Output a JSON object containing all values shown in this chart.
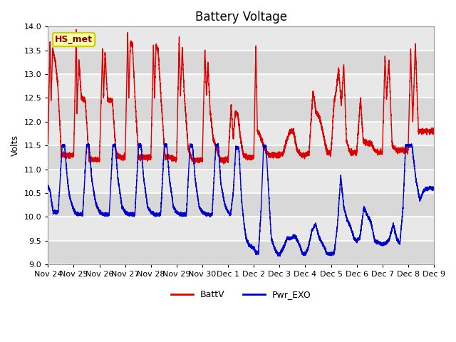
{
  "title": "Battery Voltage",
  "ylabel": "Volts",
  "ylim": [
    9.0,
    14.0
  ],
  "yticks": [
    9.0,
    9.5,
    10.0,
    10.5,
    11.0,
    11.5,
    12.0,
    12.5,
    13.0,
    13.5,
    14.0
  ],
  "x_tick_labels": [
    "Nov 24",
    "Nov 25",
    "Nov 26",
    "Nov 27",
    "Nov 28",
    "Nov 29",
    "Nov 30",
    "Dec 1",
    "Dec 2",
    "Dec 3",
    "Dec 4",
    "Dec 5",
    "Dec 6",
    "Dec 7",
    "Dec 8",
    "Dec 9"
  ],
  "batt_color": "#dd0000",
  "exo_color": "#0000cc",
  "plot_bg_inner": "#e8e8e8",
  "plot_bg_outer": "#d8d8d8",
  "annotation_text": "HS_met",
  "annotation_bg": "#ffffaa",
  "annotation_border": "#cccc00",
  "legend_batt": "BattV",
  "legend_exo": "Pwr_EXO",
  "title_fontsize": 12,
  "figsize": [
    6.4,
    4.8
  ],
  "dpi": 100,
  "batt_patterns": [
    [
      [
        0.0,
        11.5
      ],
      [
        0.08,
        13.7
      ],
      [
        0.12,
        12.45
      ],
      [
        0.18,
        13.5
      ],
      [
        0.28,
        13.3
      ],
      [
        0.38,
        12.8
      ],
      [
        0.52,
        11.3
      ],
      [
        0.7,
        11.3
      ],
      [
        1.0,
        11.3
      ]
    ],
    [
      [
        0.0,
        11.3
      ],
      [
        0.1,
        13.95
      ],
      [
        0.13,
        12.2
      ],
      [
        0.2,
        13.3
      ],
      [
        0.3,
        12.5
      ],
      [
        0.45,
        12.45
      ],
      [
        0.6,
        11.2
      ],
      [
        0.8,
        11.2
      ],
      [
        1.0,
        11.2
      ]
    ],
    [
      [
        0.0,
        11.2
      ],
      [
        0.12,
        13.5
      ],
      [
        0.16,
        12.5
      ],
      [
        0.22,
        13.45
      ],
      [
        0.32,
        12.45
      ],
      [
        0.5,
        12.45
      ],
      [
        0.65,
        11.3
      ],
      [
        0.85,
        11.25
      ],
      [
        1.0,
        11.25
      ]
    ],
    [
      [
        0.0,
        11.25
      ],
      [
        0.1,
        13.9
      ],
      [
        0.14,
        12.5
      ],
      [
        0.2,
        13.65
      ],
      [
        0.28,
        13.65
      ],
      [
        0.38,
        12.55
      ],
      [
        0.52,
        11.25
      ],
      [
        0.7,
        11.25
      ],
      [
        1.0,
        11.25
      ]
    ],
    [
      [
        0.0,
        11.25
      ],
      [
        0.1,
        13.65
      ],
      [
        0.14,
        12.5
      ],
      [
        0.2,
        13.6
      ],
      [
        0.28,
        13.5
      ],
      [
        0.4,
        12.45
      ],
      [
        0.55,
        11.25
      ],
      [
        0.75,
        11.25
      ],
      [
        1.0,
        11.2
      ]
    ],
    [
      [
        0.0,
        11.2
      ],
      [
        0.1,
        13.78
      ],
      [
        0.15,
        12.55
      ],
      [
        0.22,
        13.55
      ],
      [
        0.3,
        12.55
      ],
      [
        0.45,
        11.45
      ],
      [
        0.6,
        11.2
      ],
      [
        0.8,
        11.2
      ],
      [
        1.0,
        11.2
      ]
    ],
    [
      [
        0.0,
        11.2
      ],
      [
        0.1,
        13.55
      ],
      [
        0.16,
        12.55
      ],
      [
        0.22,
        13.25
      ],
      [
        0.3,
        12.25
      ],
      [
        0.42,
        11.65
      ],
      [
        0.55,
        11.45
      ],
      [
        0.7,
        11.2
      ],
      [
        1.0,
        11.2
      ]
    ],
    [
      [
        0.0,
        11.2
      ],
      [
        0.12,
        12.35
      ],
      [
        0.2,
        11.65
      ],
      [
        0.28,
        12.2
      ],
      [
        0.38,
        12.15
      ],
      [
        0.48,
        11.65
      ],
      [
        0.6,
        11.3
      ],
      [
        0.8,
        11.25
      ],
      [
        1.0,
        11.25
      ]
    ],
    [
      [
        0.0,
        11.25
      ],
      [
        0.08,
        13.6
      ],
      [
        0.14,
        11.8
      ],
      [
        0.22,
        11.75
      ],
      [
        0.35,
        11.55
      ],
      [
        0.5,
        11.35
      ],
      [
        0.65,
        11.3
      ],
      [
        0.85,
        11.3
      ],
      [
        1.0,
        11.3
      ]
    ],
    [
      [
        0.0,
        11.3
      ],
      [
        0.15,
        11.35
      ],
      [
        0.3,
        11.65
      ],
      [
        0.42,
        11.8
      ],
      [
        0.55,
        11.8
      ],
      [
        0.68,
        11.4
      ],
      [
        0.85,
        11.3
      ],
      [
        1.0,
        11.3
      ]
    ],
    [
      [
        0.0,
        11.3
      ],
      [
        0.15,
        11.35
      ],
      [
        0.3,
        12.65
      ],
      [
        0.42,
        12.2
      ],
      [
        0.55,
        12.1
      ],
      [
        0.68,
        11.8
      ],
      [
        0.85,
        11.35
      ],
      [
        1.0,
        11.35
      ]
    ],
    [
      [
        0.0,
        11.35
      ],
      [
        0.12,
        12.4
      ],
      [
        0.2,
        12.65
      ],
      [
        0.3,
        13.1
      ],
      [
        0.4,
        12.35
      ],
      [
        0.5,
        13.2
      ],
      [
        0.6,
        11.6
      ],
      [
        0.75,
        11.35
      ],
      [
        1.0,
        11.35
      ]
    ],
    [
      [
        0.0,
        11.35
      ],
      [
        0.15,
        12.5
      ],
      [
        0.25,
        11.6
      ],
      [
        0.4,
        11.55
      ],
      [
        0.55,
        11.55
      ],
      [
        0.7,
        11.4
      ],
      [
        0.85,
        11.35
      ],
      [
        1.0,
        11.35
      ]
    ],
    [
      [
        0.0,
        11.35
      ],
      [
        0.1,
        13.4
      ],
      [
        0.16,
        12.5
      ],
      [
        0.25,
        13.3
      ],
      [
        0.38,
        11.5
      ],
      [
        0.55,
        11.4
      ],
      [
        0.7,
        11.4
      ],
      [
        1.0,
        11.4
      ]
    ],
    [
      [
        0.0,
        11.4
      ],
      [
        0.1,
        13.5
      ],
      [
        0.18,
        12.0
      ],
      [
        0.28,
        13.65
      ],
      [
        0.4,
        11.8
      ],
      [
        0.6,
        11.8
      ],
      [
        0.8,
        11.8
      ],
      [
        1.0,
        11.8
      ]
    ],
    [
      [
        0.0,
        11.8
      ]
    ]
  ],
  "exo_patterns": [
    [
      [
        0.0,
        10.65
      ],
      [
        0.08,
        10.55
      ],
      [
        0.2,
        10.1
      ],
      [
        0.4,
        10.1
      ],
      [
        0.55,
        11.5
      ],
      [
        0.65,
        11.5
      ],
      [
        0.75,
        10.8
      ],
      [
        0.85,
        10.4
      ],
      [
        1.0,
        10.15
      ]
    ],
    [
      [
        0.0,
        10.15
      ],
      [
        0.12,
        10.05
      ],
      [
        0.35,
        10.05
      ],
      [
        0.5,
        11.5
      ],
      [
        0.6,
        11.5
      ],
      [
        0.7,
        10.8
      ],
      [
        0.85,
        10.3
      ],
      [
        1.0,
        10.1
      ]
    ],
    [
      [
        0.0,
        10.1
      ],
      [
        0.15,
        10.05
      ],
      [
        0.38,
        10.05
      ],
      [
        0.52,
        11.5
      ],
      [
        0.62,
        11.5
      ],
      [
        0.72,
        10.8
      ],
      [
        0.88,
        10.2
      ],
      [
        1.0,
        10.1
      ]
    ],
    [
      [
        0.0,
        10.1
      ],
      [
        0.15,
        10.05
      ],
      [
        0.38,
        10.05
      ],
      [
        0.52,
        11.5
      ],
      [
        0.62,
        11.5
      ],
      [
        0.72,
        10.8
      ],
      [
        0.88,
        10.2
      ],
      [
        1.0,
        10.1
      ]
    ],
    [
      [
        0.0,
        10.1
      ],
      [
        0.15,
        10.05
      ],
      [
        0.38,
        10.05
      ],
      [
        0.52,
        11.5
      ],
      [
        0.62,
        11.5
      ],
      [
        0.72,
        10.8
      ],
      [
        0.88,
        10.2
      ],
      [
        1.0,
        10.1
      ]
    ],
    [
      [
        0.0,
        10.1
      ],
      [
        0.15,
        10.05
      ],
      [
        0.38,
        10.05
      ],
      [
        0.52,
        11.5
      ],
      [
        0.62,
        11.5
      ],
      [
        0.72,
        10.8
      ],
      [
        0.88,
        10.2
      ],
      [
        1.0,
        10.1
      ]
    ],
    [
      [
        0.0,
        10.1
      ],
      [
        0.15,
        10.05
      ],
      [
        0.38,
        10.05
      ],
      [
        0.52,
        11.5
      ],
      [
        0.62,
        11.5
      ],
      [
        0.72,
        10.7
      ],
      [
        0.88,
        10.25
      ],
      [
        1.0,
        10.1
      ]
    ],
    [
      [
        0.0,
        10.1
      ],
      [
        0.1,
        10.05
      ],
      [
        0.2,
        10.5
      ],
      [
        0.3,
        11.45
      ],
      [
        0.42,
        11.45
      ],
      [
        0.52,
        10.4
      ],
      [
        0.62,
        9.85
      ],
      [
        0.7,
        9.55
      ],
      [
        0.82,
        9.4
      ],
      [
        1.0,
        9.35
      ]
    ],
    [
      [
        0.0,
        9.35
      ],
      [
        0.08,
        9.25
      ],
      [
        0.18,
        9.25
      ],
      [
        0.28,
        10.1
      ],
      [
        0.38,
        11.5
      ],
      [
        0.48,
        11.48
      ],
      [
        0.58,
        10.5
      ],
      [
        0.68,
        9.55
      ],
      [
        0.8,
        9.35
      ],
      [
        0.92,
        9.22
      ],
      [
        1.0,
        9.2
      ]
    ],
    [
      [
        0.0,
        9.2
      ],
      [
        0.15,
        9.35
      ],
      [
        0.3,
        9.55
      ],
      [
        0.45,
        9.55
      ],
      [
        0.6,
        9.6
      ],
      [
        0.75,
        9.45
      ],
      [
        0.9,
        9.22
      ],
      [
        1.0,
        9.22
      ]
    ],
    [
      [
        0.0,
        9.22
      ],
      [
        0.12,
        9.35
      ],
      [
        0.25,
        9.7
      ],
      [
        0.4,
        9.85
      ],
      [
        0.55,
        9.55
      ],
      [
        0.7,
        9.4
      ],
      [
        0.85,
        9.22
      ],
      [
        1.0,
        9.22
      ]
    ],
    [
      [
        0.0,
        9.22
      ],
      [
        0.12,
        9.22
      ],
      [
        0.25,
        9.8
      ],
      [
        0.38,
        10.85
      ],
      [
        0.5,
        10.2
      ],
      [
        0.62,
        9.95
      ],
      [
        0.75,
        9.8
      ],
      [
        0.9,
        9.55
      ],
      [
        1.0,
        9.5
      ]
    ],
    [
      [
        0.0,
        9.5
      ],
      [
        0.12,
        9.55
      ],
      [
        0.28,
        10.2
      ],
      [
        0.4,
        10.05
      ],
      [
        0.55,
        9.9
      ],
      [
        0.7,
        9.5
      ],
      [
        0.88,
        9.45
      ],
      [
        1.0,
        9.42
      ]
    ],
    [
      [
        0.0,
        9.42
      ],
      [
        0.15,
        9.45
      ],
      [
        0.28,
        9.55
      ],
      [
        0.42,
        9.85
      ],
      [
        0.55,
        9.55
      ],
      [
        0.68,
        9.45
      ],
      [
        0.8,
        10.2
      ],
      [
        0.9,
        11.5
      ],
      [
        1.0,
        11.5
      ]
    ],
    [
      [
        0.0,
        11.5
      ],
      [
        0.15,
        11.5
      ],
      [
        0.3,
        10.8
      ],
      [
        0.45,
        10.35
      ],
      [
        0.6,
        10.55
      ],
      [
        0.75,
        10.6
      ],
      [
        0.9,
        10.6
      ],
      [
        1.0,
        10.6
      ]
    ],
    [
      [
        0.0,
        10.6
      ]
    ]
  ]
}
